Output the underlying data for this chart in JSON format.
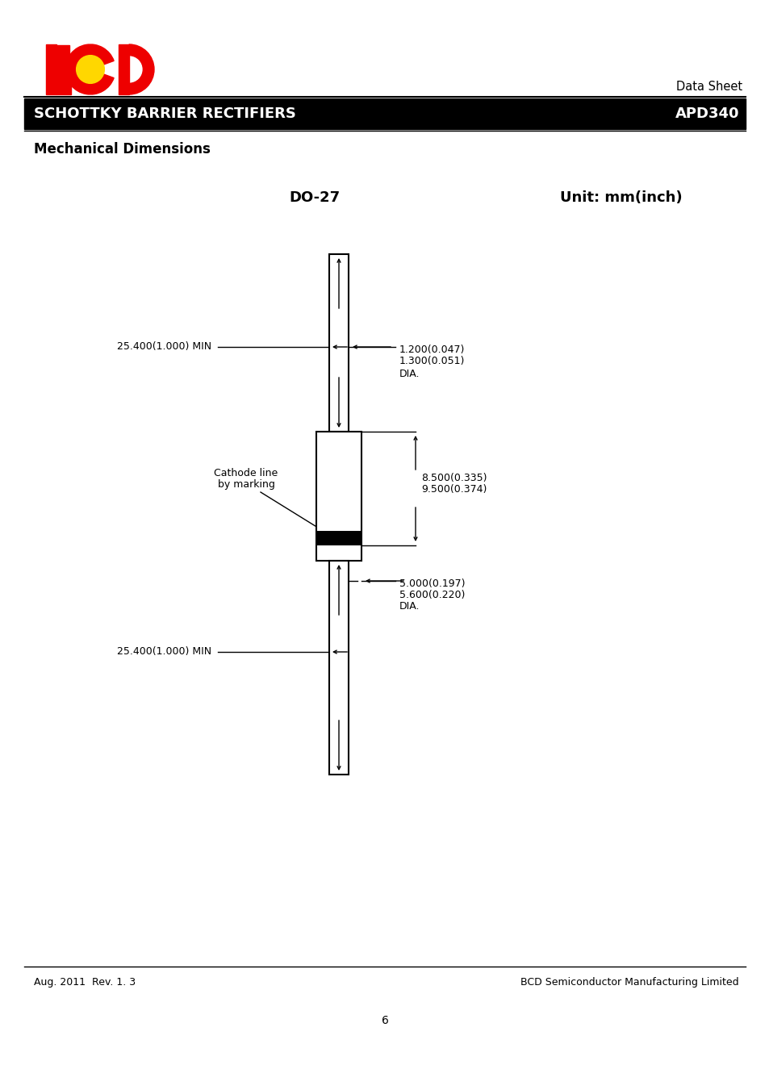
{
  "page_bg": "#ffffff",
  "header_bar_color": "#000000",
  "header_text": "SCHOTTKY BARRIER RECTIFIERS",
  "header_right": "APD340",
  "title_left": "DO-27",
  "title_right": "Unit: mm(inch)",
  "section_title": "Mechanical Dimensions",
  "datasheet_label": "Data Sheet",
  "footer_left": "Aug. 2011  Rev. 1. 3",
  "footer_right": "BCD Semiconductor Manufacturing Limited",
  "page_number": "6",
  "dim_lead_wire_label_top": "25.400(1.000) MIN",
  "dim_lead_wire_label_bot": "25.400(1.000) MIN",
  "dim_wire_dia_line1": "1.200(0.047)",
  "dim_wire_dia_line2": "1.300(0.051)",
  "dim_wire_dia_line3": "DIA.",
  "dim_body_line1": "8.500(0.335)",
  "dim_body_line2": "9.500(0.374)",
  "dim_body_dia_line1": "5.000(0.197)",
  "dim_body_dia_line2": "5.600(0.220)",
  "dim_body_dia_line3": "DIA.",
  "cathode_line1": "Cathode line",
  "cathode_line2": "by marking",
  "logo_red": "#EE0000",
  "logo_yellow": "#FFD700"
}
